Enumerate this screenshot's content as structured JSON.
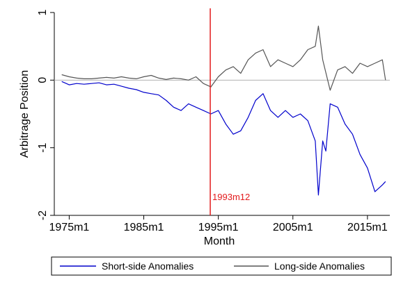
{
  "chart_data": {
    "type": "line",
    "title": "",
    "xlabel": "Month",
    "ylabel": "Arbitrage Position",
    "xlim": [
      "1973m1",
      "2018m1"
    ],
    "ylim": [
      -2,
      1
    ],
    "x_ticks": [
      "1975m1",
      "1985m1",
      "1995m1",
      "2005m1",
      "2015m1"
    ],
    "y_ticks": [
      1,
      0,
      -1,
      -2
    ],
    "y_tick_labels": [
      "1",
      "0",
      "-1",
      "-2"
    ],
    "grid": false,
    "zero_line": {
      "y": 0,
      "color": "#b0b0b0"
    },
    "vline": {
      "x": "1993m12",
      "label": "1993m12",
      "color": "#e31a1c"
    },
    "legend": {
      "position": "bottom",
      "box": true
    },
    "series": [
      {
        "name": "Short-side Anomalies",
        "color": "#0000cc",
        "points": [
          [
            "1974m1",
            -0.02
          ],
          [
            "1975m1",
            -0.07
          ],
          [
            "1976m1",
            -0.05
          ],
          [
            "1977m1",
            -0.06
          ],
          [
            "1978m1",
            -0.05
          ],
          [
            "1979m1",
            -0.04
          ],
          [
            "1980m1",
            -0.07
          ],
          [
            "1981m1",
            -0.06
          ],
          [
            "1982m1",
            -0.09
          ],
          [
            "1983m1",
            -0.12
          ],
          [
            "1984m1",
            -0.14
          ],
          [
            "1985m1",
            -0.18
          ],
          [
            "1986m1",
            -0.2
          ],
          [
            "1987m1",
            -0.22
          ],
          [
            "1988m1",
            -0.3
          ],
          [
            "1989m1",
            -0.4
          ],
          [
            "1990m1",
            -0.45
          ],
          [
            "1991m1",
            -0.35
          ],
          [
            "1992m1",
            -0.4
          ],
          [
            "1993m1",
            -0.45
          ],
          [
            "1994m1",
            -0.5
          ],
          [
            "1995m1",
            -0.45
          ],
          [
            "1996m1",
            -0.65
          ],
          [
            "1997m1",
            -0.8
          ],
          [
            "1998m1",
            -0.75
          ],
          [
            "1999m1",
            -0.55
          ],
          [
            "2000m1",
            -0.3
          ],
          [
            "2001m1",
            -0.2
          ],
          [
            "2002m1",
            -0.45
          ],
          [
            "2003m1",
            -0.55
          ],
          [
            "2004m1",
            -0.45
          ],
          [
            "2005m1",
            -0.55
          ],
          [
            "2006m1",
            -0.5
          ],
          [
            "2007m1",
            -0.6
          ],
          [
            "2008m1",
            -0.9
          ],
          [
            "2008m6",
            -1.7
          ],
          [
            "2009m1",
            -0.9
          ],
          [
            "2009m6",
            -1.05
          ],
          [
            "2010m1",
            -0.35
          ],
          [
            "2011m1",
            -0.4
          ],
          [
            "2012m1",
            -0.65
          ],
          [
            "2013m1",
            -0.8
          ],
          [
            "2014m1",
            -1.1
          ],
          [
            "2015m1",
            -1.3
          ],
          [
            "2016m1",
            -1.65
          ],
          [
            "2017m1",
            -1.55
          ],
          [
            "2017m6",
            -1.5
          ]
        ]
      },
      {
        "name": "Long-side Anomalies",
        "color": "#555555",
        "points": [
          [
            "1974m1",
            0.08
          ],
          [
            "1975m1",
            0.05
          ],
          [
            "1976m1",
            0.03
          ],
          [
            "1977m1",
            0.02
          ],
          [
            "1978m1",
            0.02
          ],
          [
            "1979m1",
            0.03
          ],
          [
            "1980m1",
            0.04
          ],
          [
            "1981m1",
            0.03
          ],
          [
            "1982m1",
            0.05
          ],
          [
            "1983m1",
            0.03
          ],
          [
            "1984m1",
            0.02
          ],
          [
            "1985m1",
            0.05
          ],
          [
            "1986m1",
            0.07
          ],
          [
            "1987m1",
            0.03
          ],
          [
            "1988m1",
            0.01
          ],
          [
            "1989m1",
            0.03
          ],
          [
            "1990m1",
            0.02
          ],
          [
            "1991m1",
            0.0
          ],
          [
            "1992m1",
            0.05
          ],
          [
            "1993m1",
            -0.05
          ],
          [
            "1994m1",
            -0.1
          ],
          [
            "1995m1",
            0.05
          ],
          [
            "1996m1",
            0.15
          ],
          [
            "1997m1",
            0.2
          ],
          [
            "1998m1",
            0.1
          ],
          [
            "1999m1",
            0.3
          ],
          [
            "2000m1",
            0.4
          ],
          [
            "2001m1",
            0.45
          ],
          [
            "2002m1",
            0.2
          ],
          [
            "2003m1",
            0.3
          ],
          [
            "2004m1",
            0.25
          ],
          [
            "2005m1",
            0.2
          ],
          [
            "2006m1",
            0.3
          ],
          [
            "2007m1",
            0.45
          ],
          [
            "2008m1",
            0.5
          ],
          [
            "2008m6",
            0.8
          ],
          [
            "2009m1",
            0.3
          ],
          [
            "2010m1",
            -0.15
          ],
          [
            "2011m1",
            0.15
          ],
          [
            "2012m1",
            0.2
          ],
          [
            "2013m1",
            0.1
          ],
          [
            "2014m1",
            0.25
          ],
          [
            "2015m1",
            0.2
          ],
          [
            "2016m1",
            0.25
          ],
          [
            "2017m1",
            0.3
          ],
          [
            "2017m6",
            0.0
          ]
        ]
      }
    ]
  }
}
